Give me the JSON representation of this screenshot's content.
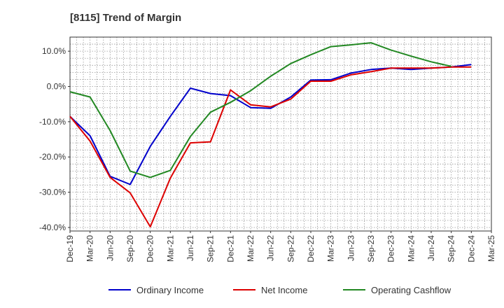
{
  "chart_data": {
    "type": "line",
    "title": "[8115]  Trend of Margin",
    "xlabel": "",
    "ylabel": "",
    "x": [
      "Dec-19",
      "Mar-20",
      "Jun-20",
      "Sep-20",
      "Dec-20",
      "Mar-21",
      "Jun-21",
      "Sep-21",
      "Dec-21",
      "Mar-22",
      "Jun-22",
      "Sep-22",
      "Dec-22",
      "Mar-23",
      "Jun-23",
      "Sep-23",
      "Dec-23",
      "Mar-24",
      "Jun-24",
      "Sep-24",
      "Dec-24",
      "Mar-25"
    ],
    "ylim": [
      -41,
      14
    ],
    "yticks": [
      10,
      0,
      -10,
      -20,
      -30,
      -40
    ],
    "ytick_labels": [
      "10.0%",
      "0.0%",
      "-10.0%",
      "-20.0%",
      "-30.0%",
      "-40.0%"
    ],
    "grid": true,
    "legend_position": "bottom",
    "series": [
      {
        "name": "Ordinary Income",
        "color": "#0000cc",
        "values": [
          -8.5,
          -14.0,
          -25.5,
          -27.8,
          -17.0,
          -8.5,
          -0.5,
          -2.0,
          -2.6,
          -6.0,
          -6.2,
          -3.0,
          1.8,
          1.9,
          3.8,
          4.8,
          5.2,
          4.8,
          5.2,
          5.5,
          6.2,
          null
        ]
      },
      {
        "name": "Net Income",
        "color": "#dd0000",
        "values": [
          -8.5,
          -15.5,
          -25.8,
          -30.2,
          -39.8,
          -26.0,
          -16.0,
          -15.7,
          -1.0,
          -5.2,
          -5.8,
          -3.6,
          1.5,
          1.5,
          3.3,
          4.2,
          5.2,
          5.2,
          5.2,
          5.5,
          5.5,
          null
        ]
      },
      {
        "name": "Operating Cashflow",
        "color": "#228822",
        "values": [
          -1.5,
          -3.0,
          -12.5,
          -24.0,
          -25.8,
          -23.8,
          -14.2,
          -7.3,
          -4.5,
          -1.2,
          2.9,
          6.5,
          9.0,
          11.3,
          11.8,
          12.4,
          10.3,
          8.6,
          7.0,
          5.7,
          null,
          null
        ]
      }
    ]
  }
}
